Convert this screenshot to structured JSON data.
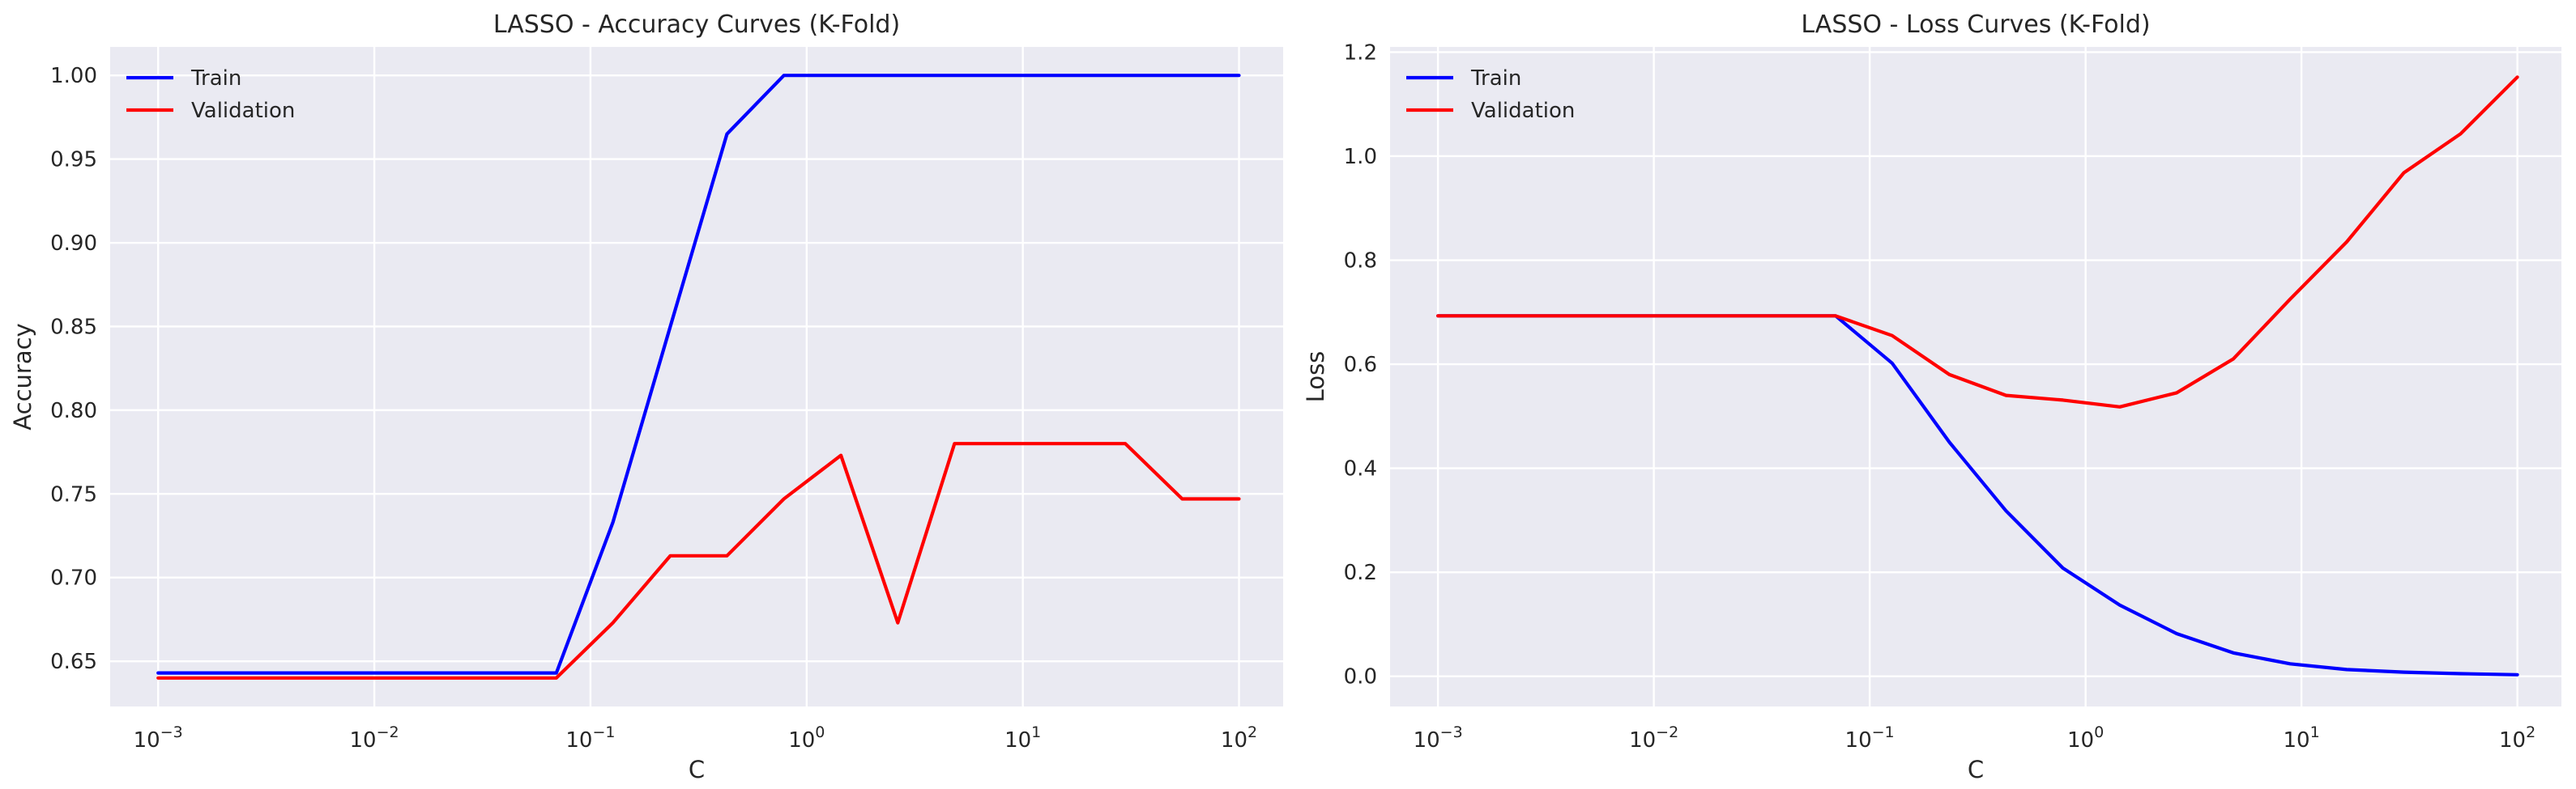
{
  "chart_data": [
    {
      "type": "line",
      "title": "LASSO - Accuracy Curves (K-Fold)",
      "xlabel": "C",
      "ylabel": "Accuracy",
      "xscale": "log",
      "xlim": [
        0.0006,
        160
      ],
      "ylim": [
        0.623,
        1.017
      ],
      "xticks": [
        0.001,
        0.01,
        0.1,
        1,
        10,
        100
      ],
      "xtick_labels": [
        "10",
        "10",
        "10",
        "10",
        "10",
        "10"
      ],
      "xtick_exponents": [
        "−3",
        "−2",
        "−1",
        "0",
        "1",
        "2"
      ],
      "yticks": [
        0.65,
        0.7,
        0.75,
        0.8,
        0.85,
        0.9,
        0.95,
        1.0
      ],
      "ytick_labels": [
        "0.65",
        "0.70",
        "0.75",
        "0.80",
        "0.85",
        "0.90",
        "0.95",
        "1.00"
      ],
      "grid": true,
      "legend": "upper-left",
      "x": [
        0.001,
        0.00183,
        0.00336,
        0.00616,
        0.0113,
        0.0207,
        0.0379,
        0.0695,
        0.127,
        0.234,
        0.428,
        0.785,
        1.44,
        2.64,
        4.83,
        8.86,
        16.2,
        29.8,
        54.6,
        100
      ],
      "series": [
        {
          "name": "Train",
          "color": "#0000FF",
          "values": [
            0.643,
            0.643,
            0.643,
            0.643,
            0.643,
            0.643,
            0.643,
            0.643,
            0.733,
            0.85,
            0.965,
            1.0,
            1.0,
            1.0,
            1.0,
            1.0,
            1.0,
            1.0,
            1.0,
            1.0
          ]
        },
        {
          "name": "Validation",
          "color": "#FF0000",
          "values": [
            0.64,
            0.64,
            0.64,
            0.64,
            0.64,
            0.64,
            0.64,
            0.64,
            0.673,
            0.713,
            0.713,
            0.747,
            0.773,
            0.673,
            0.78,
            0.78,
            0.78,
            0.78,
            0.747,
            0.747
          ]
        }
      ]
    },
    {
      "type": "line",
      "title": "LASSO - Loss Curves (K-Fold)",
      "xlabel": "C",
      "ylabel": "Loss",
      "xscale": "log",
      "xlim": [
        0.0006,
        160
      ],
      "ylim": [
        -0.058,
        1.21
      ],
      "xticks": [
        0.001,
        0.01,
        0.1,
        1,
        10,
        100
      ],
      "xtick_labels": [
        "10",
        "10",
        "10",
        "10",
        "10",
        "10"
      ],
      "xtick_exponents": [
        "−3",
        "−2",
        "−1",
        "0",
        "1",
        "2"
      ],
      "yticks": [
        0.0,
        0.2,
        0.4,
        0.6,
        0.8,
        1.0,
        1.2
      ],
      "ytick_labels": [
        "0.0",
        "0.2",
        "0.4",
        "0.6",
        "0.8",
        "1.0",
        "1.2"
      ],
      "grid": true,
      "legend": "upper-left",
      "x": [
        0.001,
        0.00183,
        0.00336,
        0.00616,
        0.0113,
        0.0207,
        0.0379,
        0.0695,
        0.127,
        0.234,
        0.428,
        0.785,
        1.44,
        2.64,
        4.83,
        8.86,
        16.2,
        29.8,
        54.6,
        100
      ],
      "series": [
        {
          "name": "Train",
          "color": "#0000FF",
          "values": [
            0.693,
            0.693,
            0.693,
            0.693,
            0.693,
            0.693,
            0.693,
            0.693,
            0.602,
            0.45,
            0.318,
            0.208,
            0.137,
            0.082,
            0.045,
            0.024,
            0.013,
            0.008,
            0.005,
            0.003
          ]
        },
        {
          "name": "Validation",
          "color": "#FF0000",
          "values": [
            0.693,
            0.693,
            0.693,
            0.693,
            0.693,
            0.693,
            0.693,
            0.693,
            0.655,
            0.58,
            0.54,
            0.531,
            0.518,
            0.545,
            0.61,
            0.725,
            0.835,
            0.968,
            1.043,
            1.152
          ]
        }
      ]
    }
  ]
}
